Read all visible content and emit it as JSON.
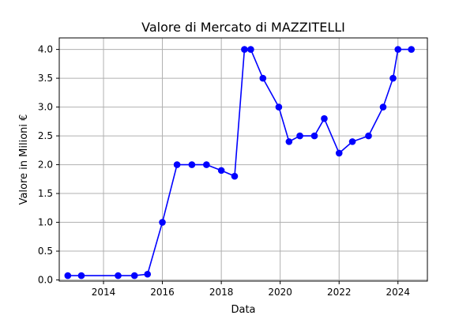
{
  "chart_data": {
    "type": "line",
    "title": "Valore di Mercato di MAZZITELLI",
    "xlabel": "Data",
    "ylabel": "Valore in Milioni €",
    "x_axis": "date",
    "xlim": [
      "2012-07-01",
      "2024-12-31"
    ],
    "ylim": [
      -0.02,
      4.2
    ],
    "x_ticks": [
      {
        "date": "2014-01-01",
        "label": "2014"
      },
      {
        "date": "2016-01-01",
        "label": "2016"
      },
      {
        "date": "2018-01-01",
        "label": "2018"
      },
      {
        "date": "2020-01-01",
        "label": "2020"
      },
      {
        "date": "2022-01-01",
        "label": "2022"
      },
      {
        "date": "2024-01-01",
        "label": "2024"
      }
    ],
    "y_ticks": [
      {
        "value": 0.0,
        "label": "0.0"
      },
      {
        "value": 0.5,
        "label": "0.5"
      },
      {
        "value": 1.0,
        "label": "1.0"
      },
      {
        "value": 1.5,
        "label": "1.5"
      },
      {
        "value": 2.0,
        "label": "2.0"
      },
      {
        "value": 2.5,
        "label": "2.5"
      },
      {
        "value": 3.0,
        "label": "3.0"
      },
      {
        "value": 3.5,
        "label": "3.5"
      },
      {
        "value": 4.0,
        "label": "4.0"
      }
    ],
    "grid": true,
    "legend": "none",
    "series": [
      {
        "color": "#0000ff",
        "marker": "circle",
        "points": [
          {
            "x": "2012-10-15",
            "y": 0.075
          },
          {
            "x": "2013-04-01",
            "y": 0.075
          },
          {
            "x": "2014-07-01",
            "y": 0.075
          },
          {
            "x": "2015-01-20",
            "y": 0.075
          },
          {
            "x": "2015-07-01",
            "y": 0.1
          },
          {
            "x": "2016-01-01",
            "y": 1.0
          },
          {
            "x": "2016-07-01",
            "y": 2.0
          },
          {
            "x": "2017-01-01",
            "y": 2.0
          },
          {
            "x": "2017-07-01",
            "y": 2.0
          },
          {
            "x": "2018-01-01",
            "y": 1.9
          },
          {
            "x": "2018-06-15",
            "y": 1.8
          },
          {
            "x": "2018-10-15",
            "y": 4.0
          },
          {
            "x": "2019-01-01",
            "y": 4.0
          },
          {
            "x": "2019-06-01",
            "y": 3.5
          },
          {
            "x": "2019-12-15",
            "y": 3.0
          },
          {
            "x": "2020-04-20",
            "y": 2.4
          },
          {
            "x": "2020-09-01",
            "y": 2.5
          },
          {
            "x": "2021-03-01",
            "y": 2.5
          },
          {
            "x": "2021-07-01",
            "y": 2.8
          },
          {
            "x": "2022-01-01",
            "y": 2.2
          },
          {
            "x": "2022-06-15",
            "y": 2.4
          },
          {
            "x": "2023-01-01",
            "y": 2.5
          },
          {
            "x": "2023-07-01",
            "y": 3.0
          },
          {
            "x": "2023-11-01",
            "y": 3.5
          },
          {
            "x": "2024-01-01",
            "y": 4.0
          },
          {
            "x": "2024-06-15",
            "y": 4.0
          }
        ]
      }
    ]
  }
}
